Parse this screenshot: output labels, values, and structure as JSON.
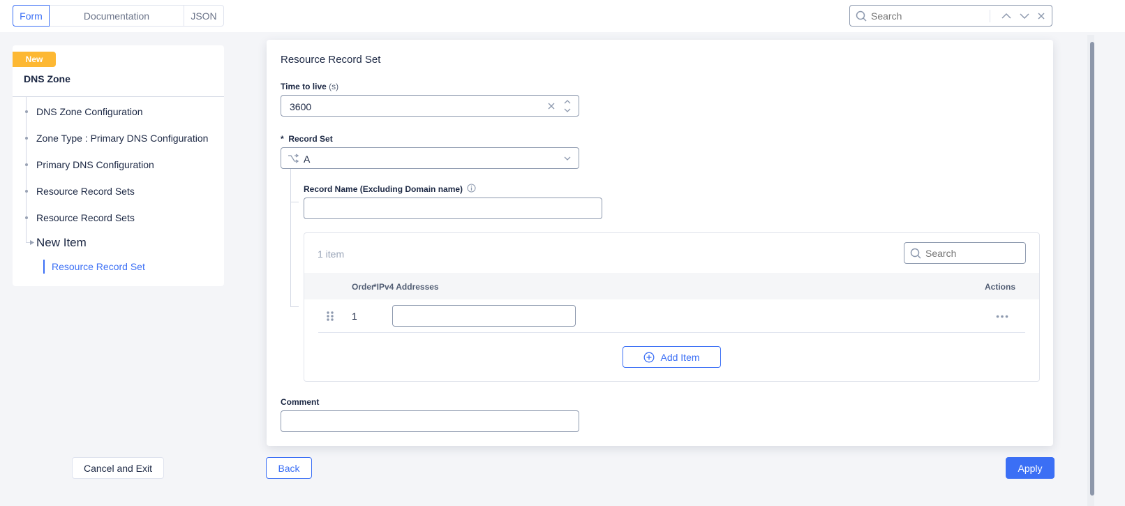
{
  "tabs": [
    {
      "label": "Form",
      "active": true
    },
    {
      "label": "Documentation"
    },
    {
      "label": "JSON"
    }
  ],
  "top_search": {
    "placeholder": "Search"
  },
  "sidebar": {
    "badge": "New",
    "title": "DNS Zone",
    "items": [
      {
        "label": "DNS Zone Configuration"
      },
      {
        "label": "Zone Type : Primary DNS Configuration"
      },
      {
        "label": "Primary DNS Configuration"
      },
      {
        "label": "Resource Record Sets"
      },
      {
        "label": "Resource Record Sets"
      }
    ],
    "current": "New Item",
    "sub_item": "Resource Record Set",
    "cancel_label": "Cancel and Exit"
  },
  "form": {
    "title": "Resource Record Set",
    "ttl": {
      "label": "Time to live",
      "unit": "(s)",
      "value": "3600"
    },
    "record_set": {
      "required": "*",
      "label": "Record Set",
      "value": "A"
    },
    "record_name": {
      "label": "Record Name (Excluding Domain name)",
      "value": ""
    },
    "table": {
      "count": "1 item",
      "search_placeholder": "Search",
      "columns": {
        "order": "Order",
        "ipv4": "*IPv4 Addresses",
        "actions": "Actions"
      },
      "rows": [
        {
          "order": "1",
          "ipv4": ""
        }
      ],
      "add_label": "Add Item"
    },
    "comment": {
      "label": "Comment",
      "value": ""
    }
  },
  "footer": {
    "back_label": "Back",
    "apply_label": "Apply"
  },
  "colors": {
    "accent": "#3b6ff5",
    "badge": "#fdb833",
    "text": "#1b2743"
  }
}
